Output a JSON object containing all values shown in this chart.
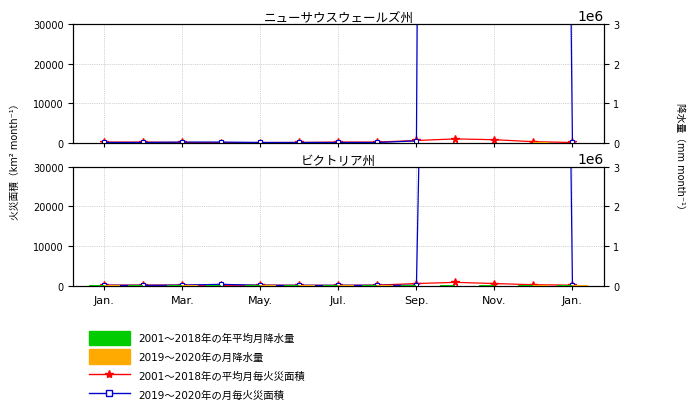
{
  "n_months": 13,
  "bar_width": 0.4,
  "nsw_precip_avg": [
    5800,
    7500,
    5200,
    3000,
    2800,
    5800,
    3000,
    3000,
    3200,
    1500,
    5800,
    6000,
    3000
  ],
  "nsw_precip_2019": [
    2500,
    6000,
    900,
    5500,
    1800,
    2000,
    1200,
    2200,
    400,
    200,
    500,
    11000,
    1500
  ],
  "nsw_fire_avg_km2": [
    200,
    200,
    100,
    50,
    80,
    100,
    200,
    200,
    600,
    1000,
    800,
    300,
    100
  ],
  "nsw_fire_2019_km2": [
    100,
    100,
    200,
    200,
    100,
    100,
    100,
    100,
    500,
    1600000,
    2350000,
    900000,
    100
  ],
  "vic_precip_avg": [
    900,
    1200,
    1000,
    1500,
    1000,
    800,
    1500,
    1200,
    1200,
    600,
    1000,
    1500,
    1000
  ],
  "vic_precip_2019": [
    700,
    300,
    800,
    200,
    1200,
    1200,
    900,
    600,
    200,
    100,
    300,
    1800,
    1200
  ],
  "vic_fire_avg_km2": [
    100,
    100,
    100,
    50,
    100,
    50,
    50,
    100,
    500,
    800,
    500,
    200,
    100
  ],
  "vic_fire_2019_km2": [
    50,
    50,
    100,
    300,
    50,
    50,
    50,
    50,
    50,
    500000,
    750000,
    800000,
    100
  ],
  "nsw_title": "ニューサウスウェールズ州",
  "vic_title": "ビクトリア州",
  "month_tick_positions": [
    0,
    2,
    4,
    6,
    8,
    10,
    12
  ],
  "month_tick_labels": [
    "Jan.",
    "Mar.",
    "May.",
    "Jul.",
    "Sep.",
    "Nov.",
    "Jan."
  ],
  "ylim_fire": [
    0,
    30000
  ],
  "ylim_precip_mm": [
    0,
    3000000
  ],
  "yticks_fire": [
    0,
    10000,
    20000,
    30000
  ],
  "yticks_precip_mm": [
    0,
    1000000,
    2000000,
    3000000
  ],
  "color_green": "#00cc00",
  "color_orange": "#ffaa00",
  "color_red": "#ff0000",
  "color_blue": "#0000cc",
  "ylabel_left": "火災面積（km² month⁻¹）",
  "ylabel_right": "降水量（mm month⁻¹）",
  "legend_labels": [
    "2001～2018年の年平均月降水量",
    "2019～2020年の月降水量",
    "2001～2018年の平均月毎火災面積",
    "2019～2020年の月毎火災面積"
  ]
}
